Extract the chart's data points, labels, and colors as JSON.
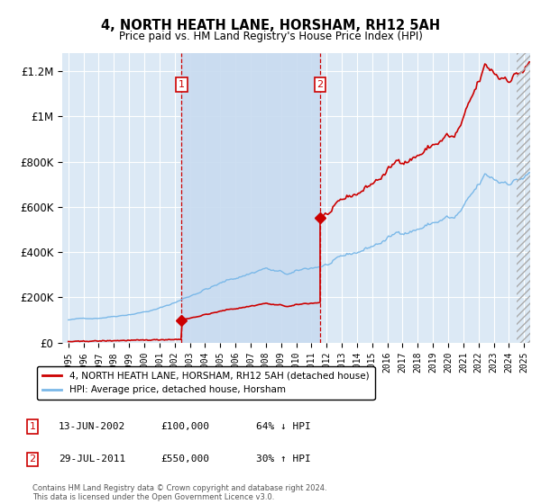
{
  "title": "4, NORTH HEATH LANE, HORSHAM, RH12 5AH",
  "subtitle": "Price paid vs. HM Land Registry's House Price Index (HPI)",
  "background_color": "#dce9f5",
  "plot_bg_color": "#dce9f5",
  "grid_color": "#ffffff",
  "hpi_color": "#7ab8e8",
  "price_color": "#cc0000",
  "marker_color": "#cc0000",
  "t1_x": 2002.45,
  "t1_y": 100000,
  "t2_x": 2011.58,
  "t2_y": 550000,
  "vline_color": "#cc0000",
  "box_color": "#cc0000",
  "shade_color": "#c8dbf0",
  "ylim": [
    0,
    1280000
  ],
  "xlim_start": 1994.6,
  "xlim_end": 2025.4,
  "yticks": [
    0,
    200000,
    400000,
    600000,
    800000,
    1000000,
    1200000
  ],
  "ylabels": [
    "£0",
    "£200K",
    "£400K",
    "£600K",
    "£800K",
    "£1M",
    "£1.2M"
  ],
  "legend_entry1": "4, NORTH HEATH LANE, HORSHAM, RH12 5AH (detached house)",
  "legend_entry2": "HPI: Average price, detached house, Horsham",
  "note1_label": "1",
  "note1_date": "13-JUN-2002",
  "note1_price": "£100,000",
  "note1_hpi": "64% ↓ HPI",
  "note2_label": "2",
  "note2_date": "29-JUL-2011",
  "note2_price": "£550,000",
  "note2_hpi": "30% ↑ HPI",
  "footer": "Contains HM Land Registry data © Crown copyright and database right 2024.\nThis data is licensed under the Open Government Licence v3.0."
}
